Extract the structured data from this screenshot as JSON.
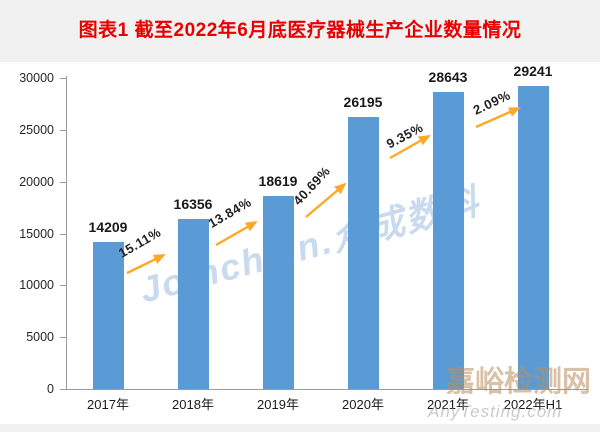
{
  "header": {
    "title": "图表1 截至2022年6月底医疗器械生产企业数量情况",
    "title_color": "#e60000",
    "band_color": "#f1f1f1"
  },
  "chart_data": {
    "type": "bar",
    "title": "图表1 截至2022年6月底医疗器械生产企业数量情况",
    "categories": [
      "2017年",
      "2018年",
      "2019年",
      "2020年",
      "2021年",
      "2022年H1"
    ],
    "values": [
      14209,
      16356,
      18619,
      26195,
      28643,
      29241
    ],
    "value_labels": [
      "14209",
      "16356",
      "18619",
      "26195",
      "28643",
      "29241"
    ],
    "growth_rates": [
      "15.11%",
      "13.84%",
      "40.69%",
      "9.35%",
      "2.09%"
    ],
    "yticks": [
      "0",
      "5000",
      "10000",
      "15000",
      "20000",
      "25000",
      "30000"
    ],
    "ytick_values": [
      0,
      5000,
      10000,
      15000,
      20000,
      25000,
      30000
    ],
    "ylim": [
      0,
      30000
    ],
    "xlabel": "",
    "ylabel": "",
    "grid": false,
    "legend": false,
    "bar_color": "#5B9BD5",
    "arrow_color": "#FFA826",
    "axis_color": "#9b9b9b",
    "label_color": "#1a1a1a"
  },
  "watermarks": {
    "center": {
      "text": "Joinchain.众成数科",
      "color": "rgba(99,148,205,0.35)"
    },
    "brand": {
      "text": "嘉峪检测网",
      "color": "rgba(186,142,92,0.55)"
    },
    "site": {
      "text": "AnyTesting.com",
      "color": "rgba(150,150,150,0.5)"
    }
  }
}
